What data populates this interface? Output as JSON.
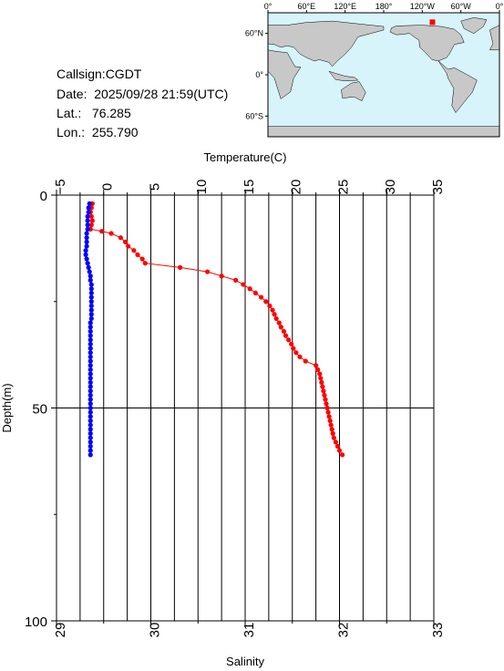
{
  "station": {
    "callsign_line": "Callsign:CGDT",
    "date_line": "Date:  2025/09/28 21:59(UTC)",
    "lat_line": "Lat.:   76.285",
    "lon_line": "Lon.:  255.790"
  },
  "map": {
    "lon_ticks": [
      "0°",
      "60°E",
      "120°E",
      "180°",
      "120°W",
      "60°W",
      "0°"
    ],
    "lat_ticks": [
      "60°N",
      "0°",
      "60°S"
    ],
    "ocean_color": "#d6f4fa",
    "land_color": "#c8c8c8",
    "marker_color": "#ff0000"
  },
  "chart_data": {
    "type": "line",
    "top_axis": {
      "label": "Temperature(C)",
      "range": [
        -5,
        35
      ],
      "ticks": [
        "−5",
        "0",
        "5",
        "10",
        "15",
        "20",
        "25",
        "30",
        "35"
      ]
    },
    "bottom_axis": {
      "label": "Salinity",
      "range": [
        29,
        33
      ],
      "ticks": [
        "29",
        "30",
        "31",
        "32",
        "33"
      ]
    },
    "left_axis": {
      "label": "Depth(m)",
      "range": [
        0,
        100
      ],
      "ticks": [
        "0",
        "50",
        "100"
      ],
      "inverted": true
    },
    "grid": true,
    "series": [
      {
        "axis": "top",
        "color": "#ff0000",
        "depth": [
          2,
          3,
          4,
          5,
          6,
          7,
          8,
          8.5,
          9,
          10,
          11,
          12,
          13,
          14,
          15,
          16,
          17,
          18,
          19,
          20,
          21,
          22,
          23,
          24,
          25,
          26,
          27,
          28,
          29,
          30,
          31,
          32,
          33,
          34,
          35,
          36,
          37,
          38,
          39,
          40,
          41,
          42,
          43,
          44,
          45,
          46,
          47,
          48,
          49,
          50,
          51,
          52,
          53,
          54,
          55,
          56,
          57,
          58,
          59,
          60,
          61
        ],
        "values": [
          -1.2,
          -1.3,
          -1.4,
          -1.3,
          -1.2,
          -1.3,
          -1.4,
          -0.2,
          0.8,
          1.8,
          2.3,
          2.6,
          3.2,
          3.6,
          4.1,
          4.4,
          8.1,
          11,
          12.5,
          14,
          14.8,
          15.5,
          16.1,
          16.7,
          17.2,
          17.6,
          17.9,
          18.1,
          18.3,
          18.6,
          18.8,
          19.1,
          19.3,
          19.6,
          19.9,
          20.1,
          20.4,
          20.8,
          21.4,
          22.5,
          22.7,
          22.9,
          23.0,
          23.1,
          23.2,
          23.3,
          23.4,
          23.5,
          23.6,
          23.7,
          23.8,
          23.9,
          24.0,
          24.1,
          24.2,
          24.3,
          24.4,
          24.6,
          24.8,
          25.0,
          25.3
        ]
      },
      {
        "axis": "bottom",
        "color": "#0000ff",
        "depth": [
          2,
          3,
          4,
          5,
          6,
          7,
          8,
          9,
          10,
          11,
          12,
          13,
          14,
          15,
          16,
          17,
          18,
          19,
          20,
          21,
          22,
          23,
          24,
          25,
          26,
          27,
          28,
          29,
          30,
          31,
          32,
          33,
          34,
          35,
          36,
          37,
          38,
          39,
          40,
          41,
          42,
          43,
          44,
          45,
          46,
          47,
          48,
          49,
          50,
          51,
          52,
          53,
          54,
          55,
          56,
          57,
          58,
          59,
          60,
          61
        ],
        "values": [
          29.35,
          29.34,
          29.34,
          29.33,
          29.33,
          29.33,
          29.33,
          29.32,
          29.32,
          29.32,
          29.32,
          29.31,
          29.31,
          29.32,
          29.33,
          29.34,
          29.35,
          29.36,
          29.36,
          29.37,
          29.37,
          29.37,
          29.37,
          29.37,
          29.37,
          29.37,
          29.37,
          29.37,
          29.36,
          29.36,
          29.36,
          29.36,
          29.36,
          29.36,
          29.36,
          29.36,
          29.36,
          29.36,
          29.36,
          29.36,
          29.36,
          29.36,
          29.36,
          29.36,
          29.36,
          29.36,
          29.36,
          29.36,
          29.36,
          29.36,
          29.36,
          29.36,
          29.36,
          29.36,
          29.36,
          29.36,
          29.36,
          29.36,
          29.36,
          29.36
        ]
      }
    ]
  }
}
